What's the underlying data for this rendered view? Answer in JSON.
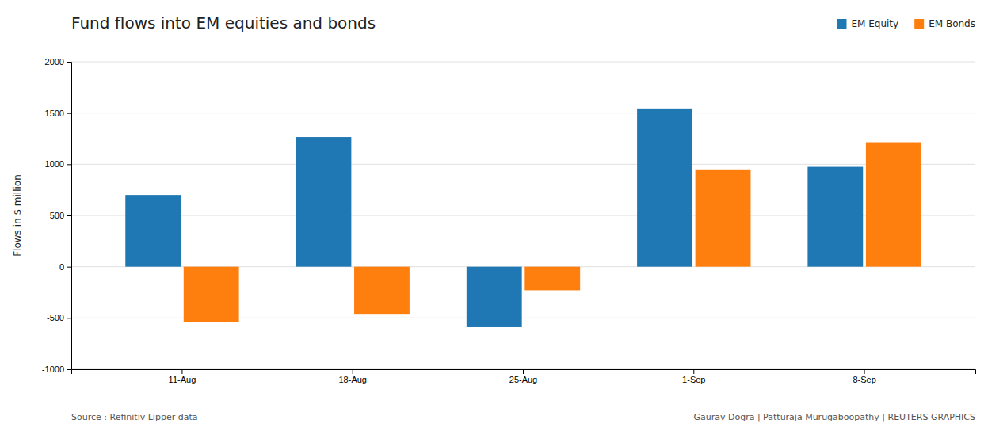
{
  "chart_data": {
    "type": "bar",
    "title": "Fund flows into EM equities and bonds",
    "categories": [
      "11-Aug",
      "18-Aug",
      "25-Aug",
      "1-Sep",
      "8-Sep"
    ],
    "series": [
      {
        "name": "EM Equity",
        "values": [
          700,
          1265,
          -590,
          1545,
          975
        ]
      },
      {
        "name": "EM Bonds",
        "values": [
          -540,
          -460,
          -230,
          950,
          1215
        ]
      }
    ],
    "ylabel": "Flows in $ million",
    "ylim": [
      -1000,
      2000
    ],
    "yticks": [
      -1000,
      -500,
      0,
      500,
      1000,
      1500,
      2000
    ],
    "grid": true,
    "legend": "top-right",
    "annotations": [
      "Source : Refinitiv Lipper data",
      "Gaurav Dogra | Patturaja Murugaboopathy | REUTERS GRAPHICS"
    ]
  }
}
